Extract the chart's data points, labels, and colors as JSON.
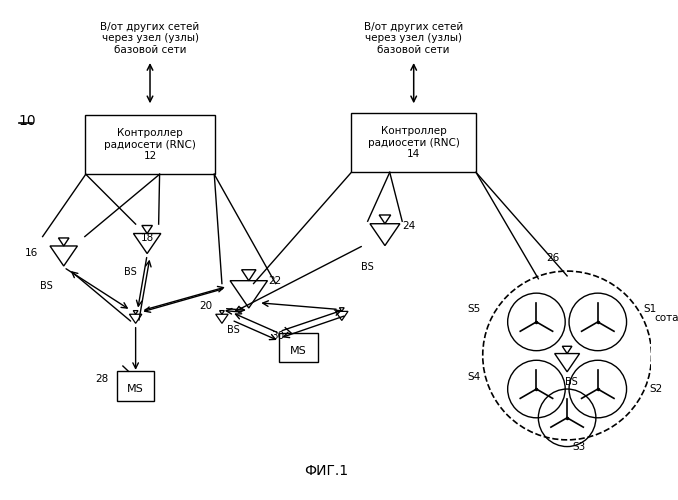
{
  "bg_color": "#ffffff",
  "fig_label": "ФИГ.1",
  "top_text_left": "В/от других сетей\nчерез узел (узлы)\nбазовой сети",
  "top_text_right": "В/от других сетей\nчерез узел (узлы)\nбазовой сети",
  "rnc1_label": "Контроллер\nрадиосети (RNC)\n12",
  "rnc2_label": "Контроллер\nрадиосети (RNC)\n14",
  "label_10": "10",
  "cell_label": "сота"
}
